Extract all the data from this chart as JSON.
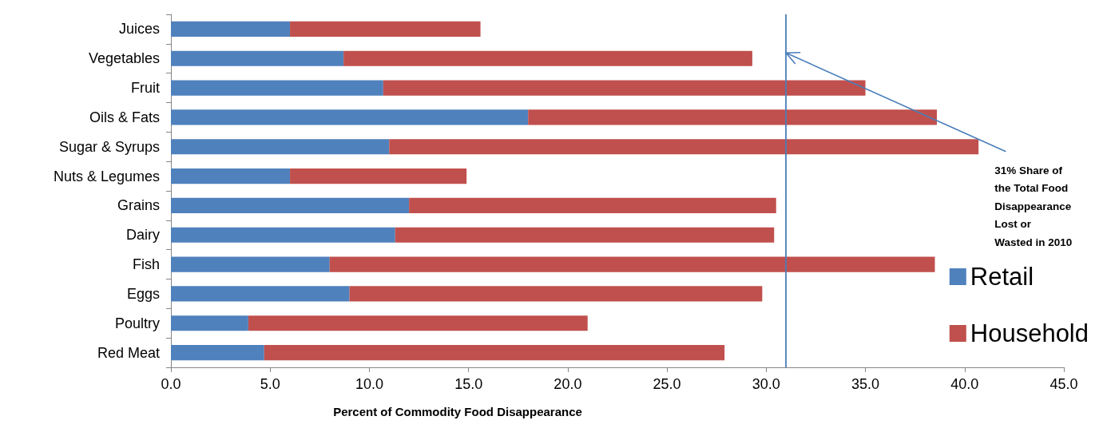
{
  "chart_data": {
    "type": "bar",
    "orientation": "horizontal",
    "stacked": true,
    "xlabel": "Percent of Commodity Food Disappearance",
    "categories": [
      "Juices",
      "Vegetables",
      "Fruit",
      "Oils & Fats",
      "Sugar & Syrups",
      "Nuts & Legumes",
      "Grains",
      "Dairy",
      "Fish",
      "Eggs",
      "Poultry",
      "Red Meat"
    ],
    "series": [
      {
        "name": "Retail",
        "color": "#4f81bd",
        "values": [
          6.0,
          8.7,
          10.7,
          18.0,
          11.0,
          6.0,
          12.0,
          11.3,
          8.0,
          9.0,
          3.9,
          4.7
        ]
      },
      {
        "name": "Household",
        "color": "#c0504d",
        "values": [
          9.6,
          20.6,
          24.3,
          20.6,
          29.7,
          8.9,
          18.5,
          19.1,
          30.5,
          20.8,
          17.1,
          23.2
        ]
      }
    ],
    "xlim": [
      0,
      45
    ],
    "xticks": [
      {
        "value": 0,
        "label": "0.0"
      },
      {
        "value": 5,
        "label": "5.0"
      },
      {
        "value": 10,
        "label": "10.0"
      },
      {
        "value": 15,
        "label": "15.0"
      },
      {
        "value": 20,
        "label": "20.0"
      },
      {
        "value": 25,
        "label": "25.0"
      },
      {
        "value": 30,
        "label": "30.0"
      },
      {
        "value": 35,
        "label": "35.0"
      },
      {
        "value": 40,
        "label": "40.0"
      },
      {
        "value": 45,
        "label": "45.0"
      }
    ],
    "ref_lines": [
      {
        "axis": "x",
        "value": 31,
        "label": "31% Share of\nthe Total Food\nDisappearance\nLost or\nWasted in 2010",
        "color": "#4a7ebb"
      }
    ],
    "grid": false,
    "legend": "bottom right"
  }
}
